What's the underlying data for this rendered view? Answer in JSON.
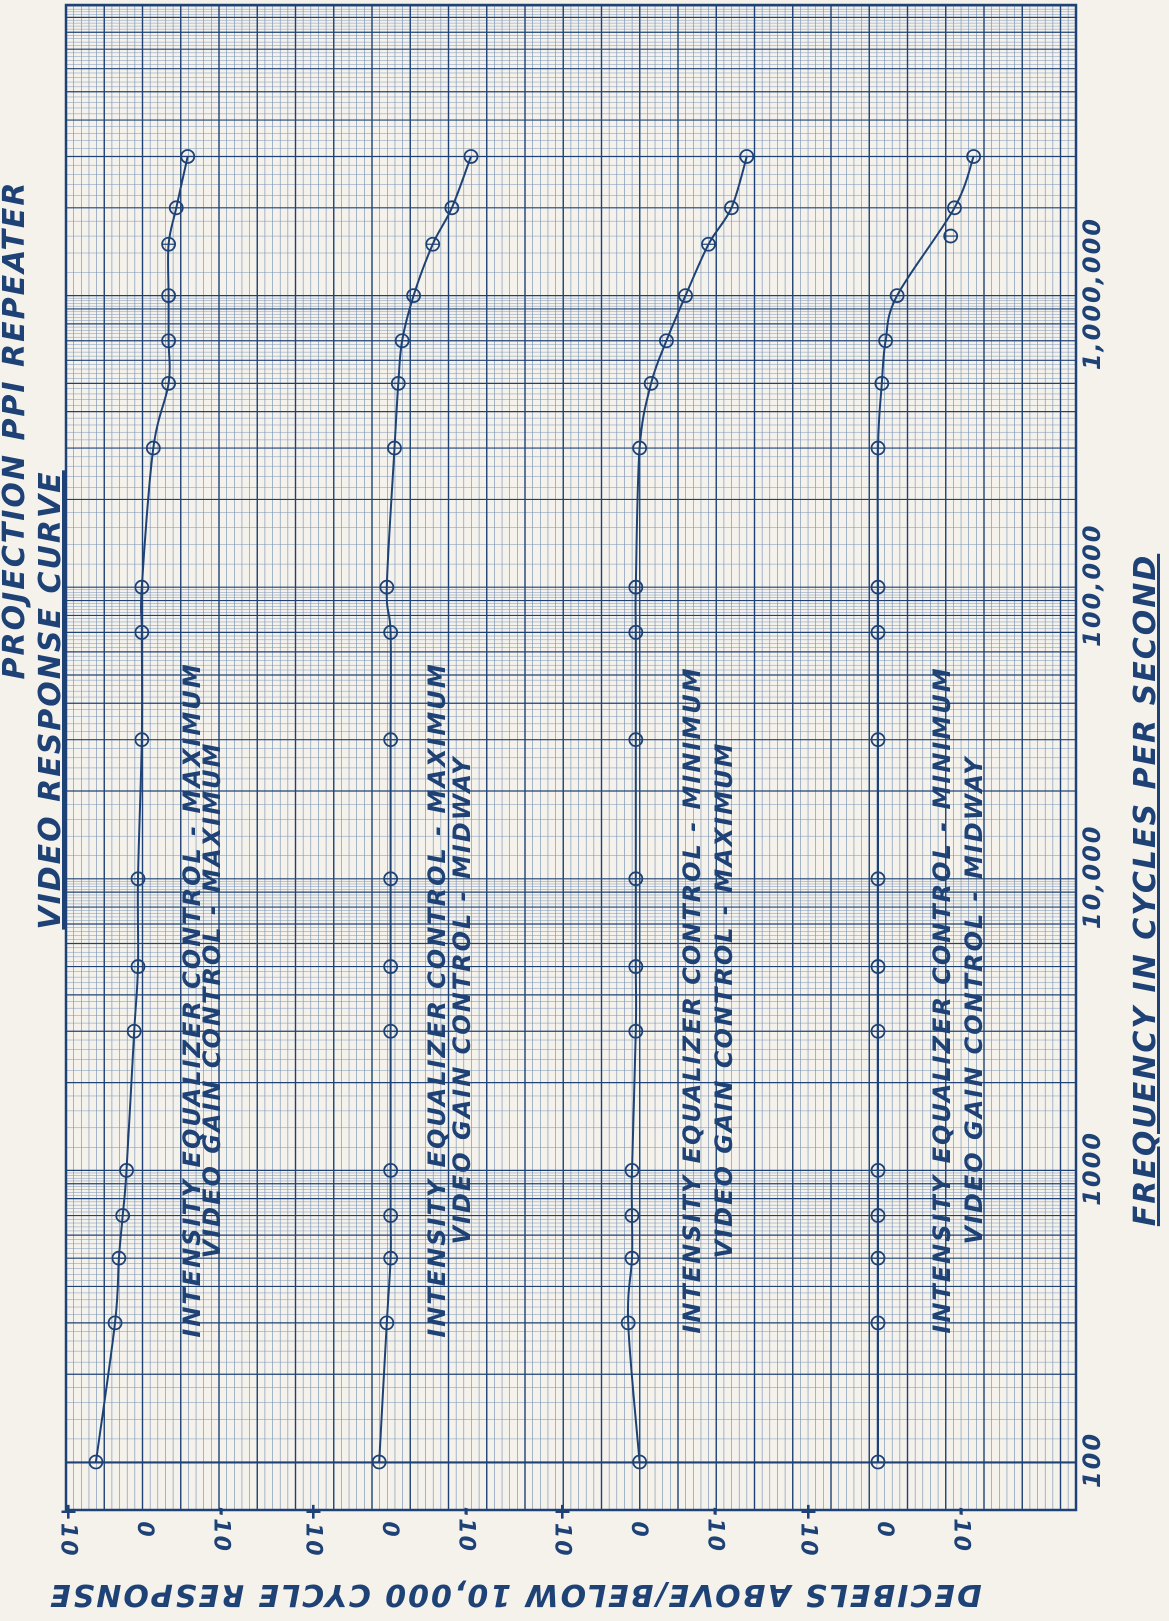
{
  "chart_data": {
    "type": "line",
    "title": "PROJECTION PPI REPEATER",
    "subtitle": "VIDEO RESPONSE CURVE",
    "xlabel": "FREQUENCY IN CYCLES PER SECOND",
    "ylabel": "DECIBELS ABOVE/BELOW 10,000 CYCLE RESPONSE",
    "x_scale": "log",
    "xlim": [
      100,
      4000000
    ],
    "x_tick_labels": [
      "100",
      "1000",
      "10,000",
      "100,000",
      "1,000,000"
    ],
    "y_tick_labels": [
      "+10",
      "0",
      "-10"
    ],
    "grid": true,
    "series": [
      {
        "name": "INTENSITY EQUALIZER CONTROL - MAXIMUM",
        "name2": "VIDEO GAIN CONTROL - MAXIMUM",
        "x": [
          100,
          300,
          500,
          700,
          1000,
          3000,
          5000,
          10000,
          30000,
          70000,
          100000,
          300000,
          500000,
          700000,
          1000000,
          1500000,
          2000000,
          3000000
        ],
        "y": [
          5.5,
          3,
          2.5,
          2,
          1.5,
          0.5,
          0,
          0,
          -0.5,
          -0.5,
          -0.5,
          -2,
          -4,
          -4,
          -4,
          -4,
          -5,
          -6.5
        ]
      },
      {
        "name": "INTENSITY EQUALIZER CONTROL - MAXIMUM",
        "name2": "VIDEO GAIN CONTROL - MIDWAY",
        "x": [
          100,
          300,
          500,
          700,
          1000,
          3000,
          5000,
          10000,
          30000,
          70000,
          100000,
          300000,
          500000,
          700000,
          1000000,
          1500000,
          2000000,
          3000000
        ],
        "y": [
          0.5,
          -0.5,
          -1,
          -1,
          -1,
          -1,
          -1,
          -1,
          -1,
          -1,
          -0.5,
          -1.5,
          -2,
          -2.5,
          -4,
          -6.5,
          -9,
          -11.5
        ]
      },
      {
        "name": "INTENSITY EQUALIZER CONTROL - MINIMUM",
        "name2": "VIDEO GAIN CONTROL - MAXIMUM",
        "x": [
          100,
          300,
          500,
          700,
          1000,
          3000,
          5000,
          10000,
          30000,
          70000,
          100000,
          300000,
          500000,
          700000,
          1000000,
          1500000,
          2000000,
          3000000
        ],
        "y": [
          -1,
          0.5,
          0,
          0,
          0,
          -0.5,
          -0.5,
          -0.5,
          -0.5,
          -0.5,
          -0.5,
          -1,
          -2.5,
          -4.5,
          -7,
          -10,
          -13,
          -15
        ]
      },
      {
        "name": "INTENSITY EQUALIZER CONTROL - MINIMUM",
        "name2": "VIDEO GAIN CONTROL - MIDWAY",
        "x": [
          100,
          300,
          500,
          700,
          1000,
          3000,
          5000,
          10000,
          30000,
          70000,
          100000,
          300000,
          500000,
          700000,
          1000000,
          2000000,
          3000000
        ],
        "y": [
          0,
          0,
          0,
          0,
          0,
          0,
          0,
          0,
          0,
          0,
          0,
          0,
          -0.5,
          -1,
          -2.5,
          -10,
          -12.5
        ]
      }
    ],
    "extra_points": [
      {
        "series": 3,
        "x": 1600000,
        "y": -9.5
      }
    ]
  }
}
